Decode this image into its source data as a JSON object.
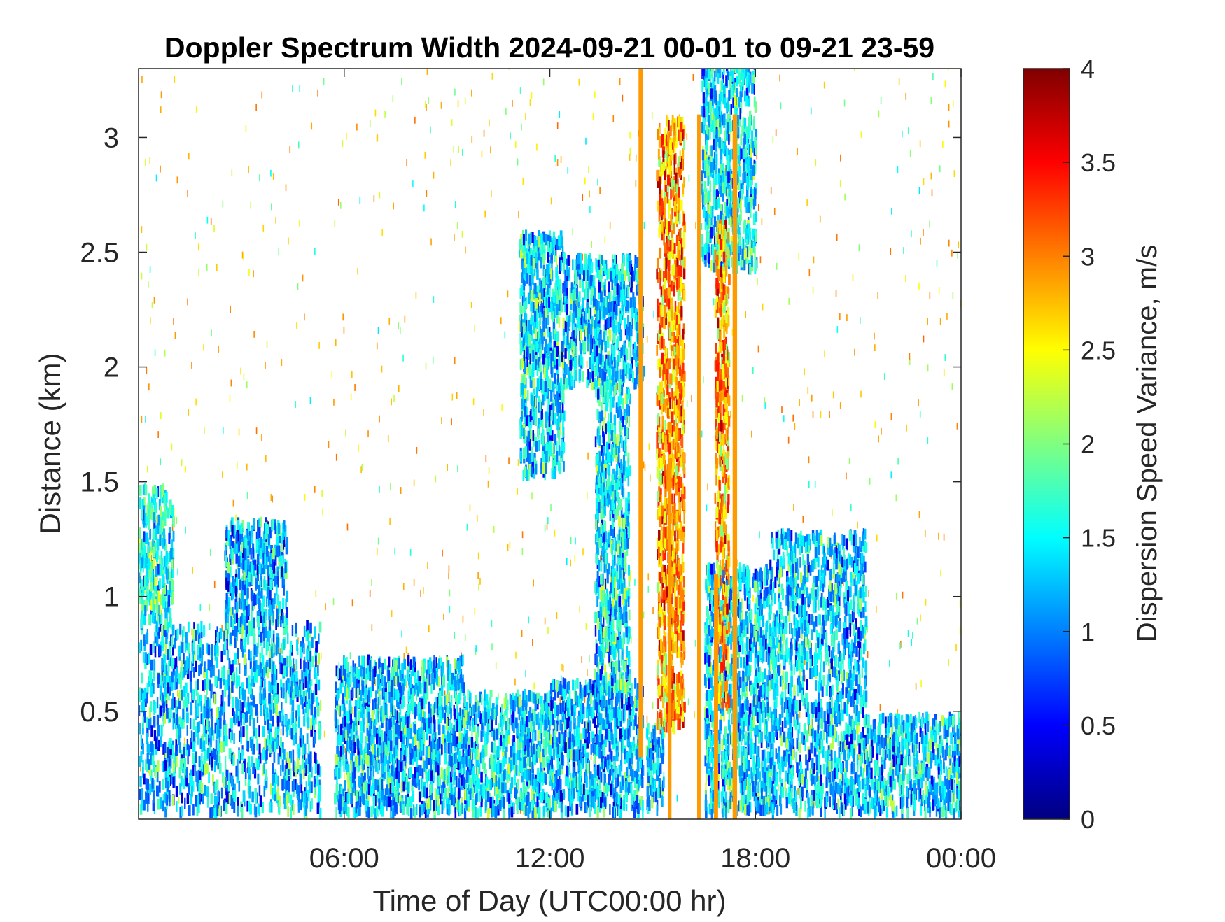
{
  "chart_data": {
    "type": "heatmap",
    "title": "Doppler Spectrum Width 2024-09-21 00-01 to 09-21 23-59",
    "xlabel": "Time of Day (UTC00:00 hr)",
    "ylabel": "Distance (km)",
    "colorbar_label": "Dispersion Speed Variance, m/s",
    "x_unit": "hours UTC",
    "xlim": [
      0,
      24
    ],
    "ylim": [
      0.03,
      3.3
    ],
    "clim": [
      0,
      4
    ],
    "colormap": "jet",
    "grid": false,
    "x_ticks": [
      {
        "value": 6,
        "label": "06:00"
      },
      {
        "value": 12,
        "label": "12:00"
      },
      {
        "value": 18,
        "label": "18:00"
      },
      {
        "value": 24,
        "label": "00:00"
      }
    ],
    "y_ticks": [
      {
        "value": 0.5,
        "label": "0.5"
      },
      {
        "value": 1,
        "label": "1"
      },
      {
        "value": 1.5,
        "label": "1.5"
      },
      {
        "value": 2,
        "label": "2"
      },
      {
        "value": 2.5,
        "label": "2.5"
      },
      {
        "value": 3,
        "label": "3"
      }
    ],
    "colorbar_ticks": [
      {
        "value": 0,
        "label": "0"
      },
      {
        "value": 0.5,
        "label": "0.5"
      },
      {
        "value": 1,
        "label": "1"
      },
      {
        "value": 1.5,
        "label": "1.5"
      },
      {
        "value": 2,
        "label": "2"
      },
      {
        "value": 2.5,
        "label": "2.5"
      },
      {
        "value": 3,
        "label": "3"
      },
      {
        "value": 3.5,
        "label": "3.5"
      },
      {
        "value": 4,
        "label": "4"
      }
    ],
    "regions": [
      {
        "x": [
          0.0,
          5.3
        ],
        "y": [
          0.03,
          0.85
        ],
        "value": 1.3
      },
      {
        "x": [
          2.5,
          4.3
        ],
        "y": [
          0.85,
          1.3
        ],
        "value": 1.2
      },
      {
        "x": [
          0.0,
          1.0
        ],
        "y": [
          0.85,
          1.45
        ],
        "value": 1.6
      },
      {
        "x": [
          5.7,
          9.5
        ],
        "y": [
          0.03,
          0.7
        ],
        "value": 1.3
      },
      {
        "x": [
          9.5,
          12.0
        ],
        "y": [
          0.03,
          0.55
        ],
        "value": 1.4
      },
      {
        "x": [
          12.0,
          14.7
        ],
        "y": [
          0.03,
          0.6
        ],
        "value": 1.2
      },
      {
        "x": [
          11.1,
          12.4
        ],
        "y": [
          1.5,
          2.55
        ],
        "value": 1.4
      },
      {
        "x": [
          12.4,
          14.7
        ],
        "y": [
          1.9,
          2.45
        ],
        "value": 1.35
      },
      {
        "x": [
          13.3,
          14.3
        ],
        "y": [
          0.55,
          1.9
        ],
        "value": 1.45
      },
      {
        "x": [
          16.5,
          17.5
        ],
        "y": [
          0.03,
          1.1
        ],
        "value": 1.4
      },
      {
        "x": [
          16.4,
          18.0
        ],
        "y": [
          2.4,
          3.3
        ],
        "value": 1.45
      },
      {
        "x": [
          17.5,
          18.4
        ],
        "y": [
          0.03,
          1.1
        ],
        "value": 1.3
      },
      {
        "x": [
          18.4,
          21.2
        ],
        "y": [
          0.03,
          1.25
        ],
        "value": 1.3
      },
      {
        "x": [
          21.2,
          24.0
        ],
        "y": [
          0.03,
          0.45
        ],
        "value": 1.35
      },
      {
        "x": [
          15.1,
          15.9
        ],
        "y": [
          0.4,
          3.05
        ],
        "value": 2.9
      },
      {
        "x": [
          16.8,
          17.2
        ],
        "y": [
          0.5,
          2.6
        ],
        "value": 2.9
      },
      {
        "x": [
          14.8,
          15.3
        ],
        "y": [
          0.03,
          0.4
        ],
        "value": 1.3
      }
    ],
    "vertical_bands": [
      {
        "x": 14.65,
        "width": 0.12,
        "y": [
          0.3,
          3.3
        ],
        "value": 2.9
      },
      {
        "x": 15.5,
        "width": 0.1,
        "y": [
          0.03,
          1.6
        ],
        "value": 2.9
      },
      {
        "x": 16.35,
        "width": 0.1,
        "y": [
          0.03,
          3.1
        ],
        "value": 2.9
      },
      {
        "x": 16.85,
        "width": 0.12,
        "y": [
          0.03,
          1.1
        ],
        "value": 2.9
      },
      {
        "x": 17.4,
        "width": 0.13,
        "y": [
          0.03,
          3.1
        ],
        "value": 2.9
      }
    ]
  }
}
